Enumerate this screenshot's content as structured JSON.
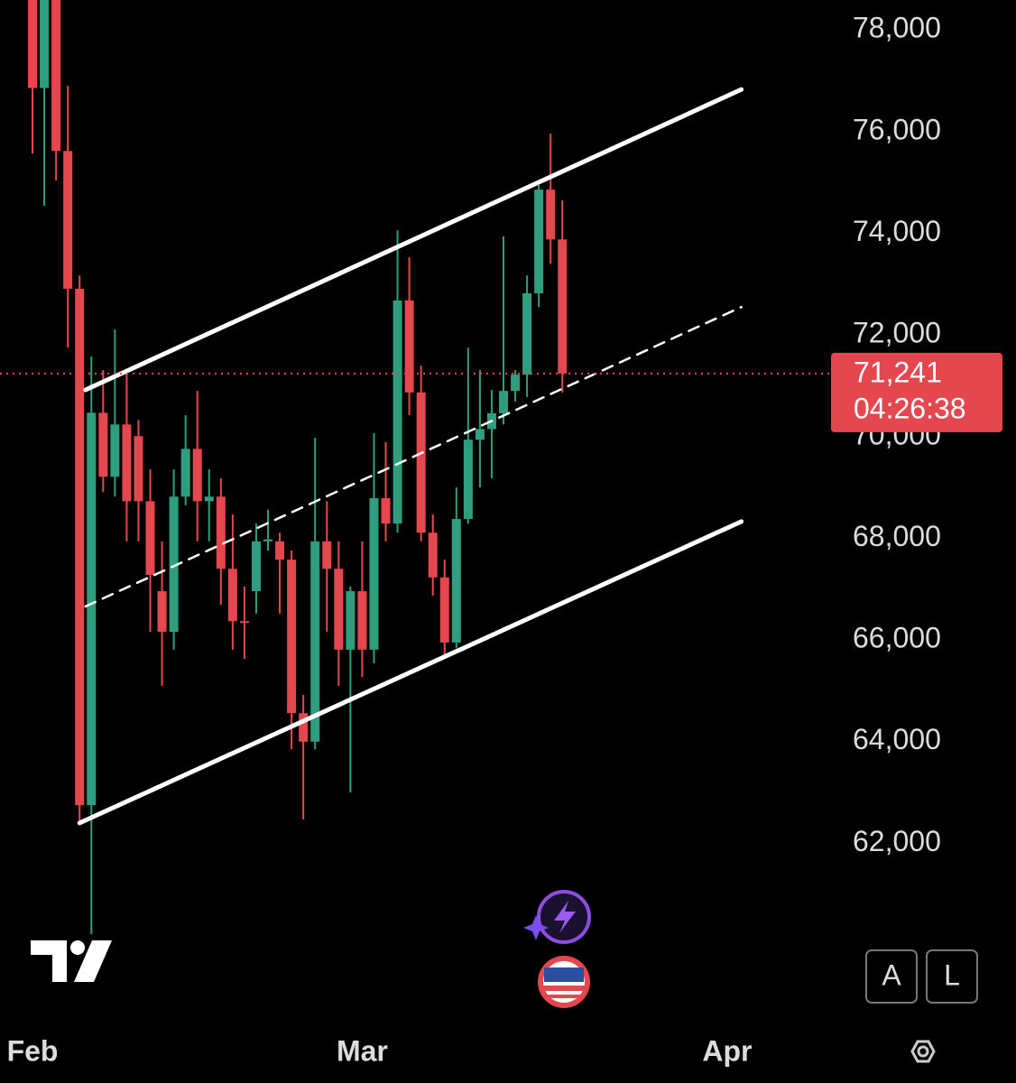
{
  "chart_data": {
    "type": "candlestick",
    "x": [
      0,
      1,
      2,
      3,
      4,
      5,
      6,
      7,
      8,
      9,
      10,
      11,
      12,
      13,
      14,
      15,
      16,
      17,
      18,
      19,
      20,
      21,
      22,
      23,
      24,
      25,
      26,
      27,
      28,
      29,
      30,
      31,
      32,
      33,
      34,
      35,
      36,
      37,
      38,
      39,
      40,
      41,
      42,
      43,
      44,
      45
    ],
    "open": [
      79500,
      76860,
      79300,
      75620,
      72910,
      62750,
      70470,
      69210,
      70240,
      70010,
      68730,
      66960,
      66160,
      68820,
      69760,
      68730,
      68820,
      67400,
      66370,
      66960,
      67940,
      67940,
      67580,
      64560,
      64000,
      67940,
      67400,
      65810,
      66960,
      65810,
      68790,
      68290,
      72680,
      70870,
      68110,
      67230,
      65950,
      68380,
      69940,
      70150,
      70460,
      70900,
      71220,
      72820,
      74860,
      73880
    ],
    "high": [
      79800,
      79800,
      79600,
      76900,
      73170,
      71580,
      71310,
      72110,
      71340,
      70330,
      69360,
      67940,
      69360,
      70420,
      70900,
      69360,
      69180,
      68470,
      67050,
      68290,
      68560,
      68110,
      67760,
      64920,
      69980,
      68730,
      67940,
      67050,
      67940,
      70070,
      69890,
      74060,
      73530,
      71400,
      68470,
      67580,
      69000,
      71750,
      71310,
      70920,
      73940,
      71310,
      73170,
      74950,
      75960,
      74650
    ],
    "low": [
      75570,
      74540,
      75040,
      71750,
      62400,
      60210,
      68910,
      68820,
      67940,
      67940,
      66160,
      65100,
      65810,
      68650,
      67940,
      67940,
      66690,
      65810,
      65630,
      66520,
      67760,
      66520,
      63850,
      62470,
      63850,
      66160,
      65100,
      63000,
      65270,
      65540,
      67940,
      68110,
      70420,
      67940,
      66870,
      65660,
      65840,
      68290,
      69000,
      69180,
      70240,
      70690,
      70780,
      72550,
      73400,
      70870
    ],
    "close": [
      76860,
      79300,
      75620,
      72910,
      62750,
      70470,
      69210,
      70240,
      68730,
      68730,
      67280,
      66160,
      68820,
      69760,
      68730,
      68820,
      67400,
      66370,
      66340,
      67940,
      67980,
      67580,
      64560,
      64000,
      67940,
      67400,
      65810,
      66960,
      65810,
      68790,
      68290,
      72680,
      70870,
      68110,
      67230,
      65950,
      68380,
      69940,
      70150,
      70460,
      70900,
      71220,
      72820,
      74860,
      73880,
      71241
    ],
    "up_color": "#2f9e7f",
    "down_color": "#e5474e",
    "xlim": [
      -2.76,
      67.74
    ],
    "xticks": [
      {
        "value": 0,
        "label": "Feb"
      },
      {
        "value": 28,
        "label": "Mar"
      },
      {
        "value": 59,
        "label": "Apr"
      }
    ],
    "ylim": [
      58350,
      78590
    ],
    "yticks": [
      {
        "value": 62000,
        "label": "62,000"
      },
      {
        "value": 64000,
        "label": "64,000"
      },
      {
        "value": 66000,
        "label": "66,000"
      },
      {
        "value": 68000,
        "label": "68,000"
      },
      {
        "value": 70000,
        "label": "70,000"
      },
      {
        "value": 72000,
        "label": "72,000"
      },
      {
        "value": 74000,
        "label": "74,000"
      },
      {
        "value": 76000,
        "label": "76,000"
      },
      {
        "value": 78000,
        "label": "78,000"
      }
    ],
    "trendlines": [
      {
        "x": [
          4.5,
          60.2
        ],
        "y": [
          70920,
          76830
        ],
        "style": "solid"
      },
      {
        "x": [
          4.5,
          60.2
        ],
        "y": [
          66660,
          72550
        ],
        "style": "dashed"
      },
      {
        "x": [
          4.0,
          60.2
        ],
        "y": [
          62400,
          68330
        ],
        "style": "solid"
      }
    ],
    "last_price": {
      "value": 71241,
      "label": "71,241"
    },
    "countdown": "04:26:38"
  },
  "buttons": [
    "A",
    "L"
  ]
}
